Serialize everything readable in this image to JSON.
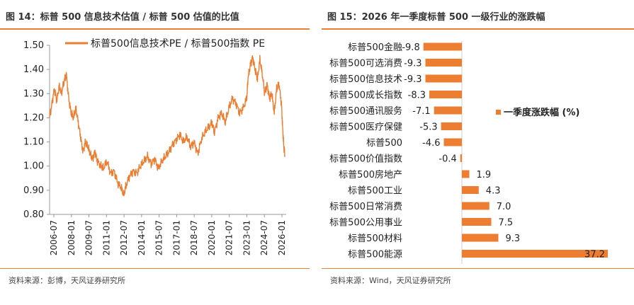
{
  "left_panel": {
    "figure_label": "图 14：标普 500 信息技术估值 / 标普 500 估值的比值",
    "source_text": "资料来源：彭博，天风证券研究所"
  },
  "right_panel": {
    "figure_label": "图 15：2026 年一季度标普 500 一级行业的涨跌幅",
    "source_text": "资料来源：Wind，天风证券研究所"
  },
  "colors": {
    "accent": "#ED7D31",
    "axis": "#999999",
    "text": "#222222"
  },
  "chart_data": [
    {
      "type": "line",
      "title": "",
      "legend": "标普500信息技术PE / 标普500指数 PE",
      "legend_position": "top-left",
      "xlabel": "",
      "ylabel": "",
      "ylim": [
        0.8,
        1.5
      ],
      "yticks": [
        "0.80",
        "0.90",
        "1.00",
        "1.10",
        "1.20",
        "1.30",
        "1.40",
        "1.50"
      ],
      "xlim": [
        2006.5,
        2026.3
      ],
      "xtick_labels": [
        "2006-07",
        "2008-01",
        "2009-07",
        "2011-01",
        "2012-07",
        "2014-01",
        "2015-07",
        "2017-01",
        "2018-07",
        "2020-01",
        "2021-07",
        "2023-01",
        "2024-07",
        "2026-01"
      ],
      "x": [
        2006.5,
        2006.7,
        2006.9,
        2007.1,
        2007.3,
        2007.5,
        2007.7,
        2007.9,
        2008.1,
        2008.3,
        2008.5,
        2008.7,
        2008.9,
        2009.1,
        2009.3,
        2009.5,
        2009.7,
        2009.9,
        2010.1,
        2010.3,
        2010.5,
        2010.8,
        2011.0,
        2011.3,
        2011.6,
        2011.9,
        2012.2,
        2012.5,
        2012.7,
        2012.9,
        2013.2,
        2013.5,
        2013.8,
        2014.1,
        2014.4,
        2014.7,
        2015.0,
        2015.3,
        2015.6,
        2015.9,
        2016.2,
        2016.5,
        2016.8,
        2017.1,
        2017.4,
        2017.7,
        2018.0,
        2018.3,
        2018.6,
        2018.9,
        2019.2,
        2019.5,
        2019.8,
        2020.1,
        2020.3,
        2020.6,
        2020.9,
        2021.2,
        2021.5,
        2021.8,
        2022.1,
        2022.4,
        2022.7,
        2023.0,
        2023.1,
        2023.3,
        2023.5,
        2023.7,
        2023.9,
        2024.1,
        2024.3,
        2024.5,
        2024.7,
        2024.9,
        2025.1,
        2025.3,
        2025.5,
        2025.7,
        2025.9,
        2026.0,
        2026.1,
        2026.2
      ],
      "values": [
        1.2,
        1.26,
        1.32,
        1.27,
        1.33,
        1.3,
        1.35,
        1.38,
        1.28,
        1.22,
        1.2,
        1.24,
        1.18,
        1.12,
        1.06,
        1.1,
        1.08,
        1.05,
        1.03,
        1.06,
        1.02,
        1.0,
        0.99,
        1.02,
        0.97,
        0.98,
        0.93,
        0.91,
        0.88,
        0.92,
        0.96,
        0.98,
        0.97,
        1.0,
        1.02,
        1.04,
        1.01,
        1.03,
        0.99,
        1.02,
        1.04,
        1.06,
        1.09,
        1.11,
        1.13,
        1.1,
        1.12,
        1.08,
        1.1,
        1.05,
        1.11,
        1.14,
        1.16,
        1.18,
        1.14,
        1.2,
        1.22,
        1.18,
        1.24,
        1.28,
        1.26,
        1.22,
        1.24,
        1.28,
        1.36,
        1.42,
        1.45,
        1.4,
        1.36,
        1.44,
        1.38,
        1.3,
        1.34,
        1.28,
        1.3,
        1.22,
        1.32,
        1.34,
        1.26,
        1.16,
        1.08,
        1.04
      ]
    },
    {
      "type": "bar",
      "orientation": "horizontal",
      "title": "",
      "legend": "一季度涨跌幅 (%)",
      "legend_position": "right",
      "categories": [
        "标普500金融",
        "标普500可选消费",
        "标普500信息技术",
        "标普500成长指数",
        "标普500通讯服务",
        "标普500医疗保健",
        "标普500",
        "标普500价值指数",
        "标普500房地产",
        "标普500工业",
        "标普500日常消费",
        "标普500公用事业",
        "标普500材料",
        "标普500能源"
      ],
      "values": [
        -9.8,
        -9.3,
        -9.3,
        -8.3,
        -7.1,
        -5.3,
        -4.6,
        -0.4,
        1.9,
        4.3,
        7.0,
        7.5,
        9.3,
        37.2
      ],
      "value_labels": [
        "-9.8",
        "-9.3",
        "-9.3",
        "-8.3",
        "-7.1",
        "-5.3",
        "-4.6",
        "-0.4",
        "1.9",
        "4.3",
        "7.0",
        "7.5",
        "9.3",
        "37.2"
      ],
      "xlim": [
        -10,
        37.2
      ]
    }
  ]
}
